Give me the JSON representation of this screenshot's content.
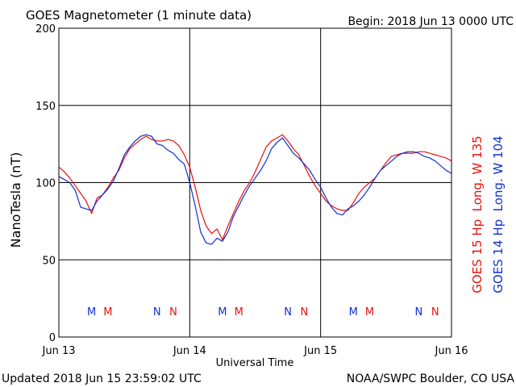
{
  "header": {
    "title": "GOES Magnetometer (1 minute data)",
    "begin": "Begin:  2018 Jun 13 0000 UTC"
  },
  "footer": {
    "updated": "Updated 2018 Jun 15 23:59:02 UTC",
    "source": "NOAA/SWPC Boulder, CO USA"
  },
  "colors": {
    "goes15": "#e8100c",
    "goes14": "#1030d0",
    "grid": "#000000",
    "background": "#ffffff"
  },
  "chart_data": {
    "type": "line",
    "title": "GOES Magnetometer (1 minute data)",
    "xlabel": "Universal Time",
    "ylabel": "NanoTesla (nT)",
    "xlim_hours": [
      0,
      72
    ],
    "ylim": [
      0,
      200
    ],
    "yticks": [
      0,
      50,
      100,
      150,
      200
    ],
    "xticks": [
      {
        "hour": 0,
        "label": "Jun 13"
      },
      {
        "hour": 24,
        "label": "Jun 14"
      },
      {
        "hour": 48,
        "label": "Jun 15"
      },
      {
        "hour": 72,
        "label": "Jun 16"
      }
    ],
    "grid": true,
    "series": [
      {
        "name": "GOES 15 Hp  Long. W 135",
        "color": "#e8100c",
        "x": [
          0,
          1,
          2,
          3,
          4,
          5,
          6,
          7,
          8,
          9,
          10,
          11,
          12,
          13,
          14,
          15,
          16,
          17,
          18,
          19,
          20,
          21,
          22,
          23,
          24,
          25,
          26,
          27,
          28,
          29,
          30,
          31,
          32,
          33,
          34,
          35,
          36,
          37,
          38,
          39,
          40,
          41,
          42,
          43,
          44,
          45,
          46,
          47,
          48,
          49,
          50,
          51,
          52,
          53,
          54,
          55,
          56,
          57,
          58,
          59,
          60,
          61,
          62,
          63,
          64,
          65,
          66,
          67,
          68,
          69,
          70,
          71,
          72
        ],
        "y": [
          110,
          107,
          103,
          98,
          93,
          88,
          80,
          90,
          92,
          97,
          103,
          108,
          116,
          122,
          125,
          128,
          130,
          128,
          127,
          127,
          128,
          127,
          124,
          118,
          110,
          97,
          82,
          72,
          67,
          70,
          63,
          72,
          80,
          88,
          95,
          100,
          107,
          115,
          123,
          127,
          129,
          131,
          127,
          122,
          118,
          111,
          104,
          98,
          93,
          88,
          85,
          83,
          82,
          82,
          87,
          93,
          97,
          100,
          103,
          108,
          113,
          117,
          118,
          119,
          119,
          119,
          120,
          120,
          119,
          118,
          117,
          116,
          114
        ]
      },
      {
        "name": "GOES 14 Hp  Long. W 104",
        "color": "#1030d0",
        "x": [
          0,
          1,
          2,
          3,
          4,
          5,
          6,
          7,
          8,
          9,
          10,
          11,
          12,
          13,
          14,
          15,
          16,
          17,
          18,
          19,
          20,
          21,
          22,
          23,
          24,
          25,
          26,
          27,
          28,
          29,
          30,
          31,
          32,
          33,
          34,
          35,
          36,
          37,
          38,
          39,
          40,
          41,
          42,
          43,
          44,
          45,
          46,
          47,
          48,
          49,
          50,
          51,
          52,
          53,
          54,
          55,
          56,
          57,
          58,
          59,
          60,
          61,
          62,
          63,
          64,
          65,
          66,
          67,
          68,
          69,
          70,
          71,
          72
        ],
        "y": [
          104,
          102,
          100,
          95,
          84,
          83,
          82,
          88,
          92,
          96,
          101,
          109,
          118,
          123,
          127,
          130,
          131,
          130,
          125,
          124,
          121,
          119,
          115,
          112,
          100,
          85,
          68,
          61,
          60,
          64,
          62,
          68,
          78,
          85,
          92,
          98,
          103,
          108,
          114,
          122,
          126,
          129,
          124,
          119,
          116,
          112,
          108,
          102,
          97,
          90,
          84,
          80,
          79,
          83,
          85,
          88,
          92,
          97,
          103,
          108,
          111,
          114,
          117,
          119,
          120,
          120,
          119,
          117,
          116,
          114,
          111,
          108,
          106
        ]
      }
    ],
    "markers": [
      {
        "label": "M",
        "hour": 6,
        "series": "GOES 14 Hp  Long. W 104"
      },
      {
        "label": "M",
        "hour": 9,
        "series": "GOES 15 Hp  Long. W 135"
      },
      {
        "label": "N",
        "hour": 18,
        "series": "GOES 14 Hp  Long. W 104"
      },
      {
        "label": "N",
        "hour": 21,
        "series": "GOES 15 Hp  Long. W 135"
      },
      {
        "label": "M",
        "hour": 30,
        "series": "GOES 14 Hp  Long. W 104"
      },
      {
        "label": "M",
        "hour": 33,
        "series": "GOES 15 Hp  Long. W 135"
      },
      {
        "label": "N",
        "hour": 42,
        "series": "GOES 14 Hp  Long. W 104"
      },
      {
        "label": "N",
        "hour": 45,
        "series": "GOES 15 Hp  Long. W 135"
      },
      {
        "label": "M",
        "hour": 54,
        "series": "GOES 14 Hp  Long. W 104"
      },
      {
        "label": "M",
        "hour": 57,
        "series": "GOES 15 Hp  Long. W 135"
      },
      {
        "label": "N",
        "hour": 66,
        "series": "GOES 14 Hp  Long. W 104"
      },
      {
        "label": "N",
        "hour": 69,
        "series": "GOES 15 Hp  Long. W 135"
      }
    ]
  }
}
